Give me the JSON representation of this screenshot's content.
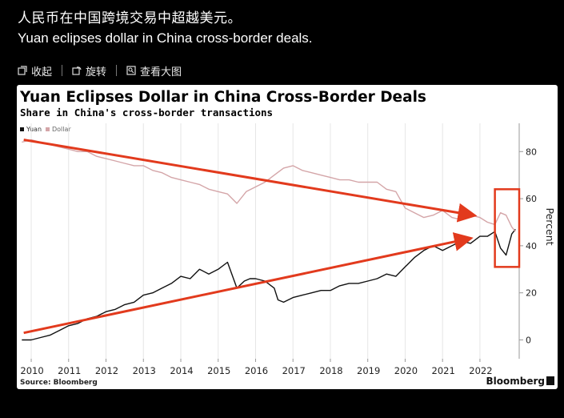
{
  "post": {
    "title_cn": "人民币在中国跨境交易中超越美元。",
    "title_en": "Yuan eclipses dollar in China cross-border deals."
  },
  "toolbar": {
    "items": [
      {
        "label": "收起",
        "icon": "collapse-icon"
      },
      {
        "label": "旋转",
        "icon": "rotate-icon"
      },
      {
        "label": "查看大图",
        "icon": "view-large-icon"
      }
    ]
  },
  "chart_data": {
    "type": "line",
    "title": "Yuan Eclipses Dollar in China Cross-Border Deals",
    "subtitle": "Share in China's cross-border transactions",
    "ylabel": "Percent",
    "source": "Source: Bloomberg",
    "brand": "Bloomberg",
    "ylim": [
      -8,
      92
    ],
    "yticks": [
      0,
      20,
      40,
      60,
      80
    ],
    "x_ticks": [
      "2010",
      "2011",
      "2012",
      "2013",
      "2014",
      "2015",
      "2016",
      "2017",
      "2018",
      "2019",
      "2020",
      "2021",
      "2022"
    ],
    "xlim": [
      2009.7,
      2023.05
    ],
    "legend_position": "top-left",
    "grid": true,
    "colors": {
      "yuan": "#111111",
      "dollar": "#d4a5a8",
      "arrow": "#e23a1d",
      "box": "#e23a1d"
    },
    "series": [
      {
        "name": "Yuan",
        "x": [
          2009.75,
          2010.0,
          2010.25,
          2010.5,
          2010.75,
          2011.0,
          2011.25,
          2011.5,
          2011.75,
          2012.0,
          2012.25,
          2012.5,
          2012.75,
          2013.0,
          2013.25,
          2013.5,
          2013.75,
          2014.0,
          2014.25,
          2014.5,
          2014.75,
          2015.0,
          2015.25,
          2015.5,
          2015.7,
          2015.85,
          2016.0,
          2016.25,
          2016.5,
          2016.6,
          2016.75,
          2017.0,
          2017.25,
          2017.5,
          2017.75,
          2018.0,
          2018.25,
          2018.5,
          2018.75,
          2019.0,
          2019.25,
          2019.5,
          2019.75,
          2020.0,
          2020.25,
          2020.5,
          2020.75,
          2021.0,
          2021.25,
          2021.5,
          2021.75,
          2022.0,
          2022.2,
          2022.4,
          2022.55,
          2022.7,
          2022.85,
          2022.95
        ],
        "values": [
          0,
          0,
          1,
          2,
          4,
          6,
          7,
          9,
          10,
          12,
          13,
          15,
          16,
          19,
          20,
          22,
          24,
          27,
          26,
          30,
          28,
          30,
          33,
          22,
          25,
          26,
          26,
          25,
          22,
          17,
          16,
          18,
          19,
          20,
          21,
          21,
          23,
          24,
          24,
          25,
          26,
          28,
          27,
          31,
          35,
          38,
          40,
          38,
          40,
          42,
          41,
          44,
          44,
          46,
          39,
          36,
          45,
          47
        ]
      },
      {
        "name": "Dollar",
        "x": [
          2009.75,
          2010.0,
          2010.25,
          2010.5,
          2010.75,
          2011.0,
          2011.25,
          2011.5,
          2011.75,
          2012.0,
          2012.25,
          2012.5,
          2012.75,
          2013.0,
          2013.25,
          2013.5,
          2013.75,
          2014.0,
          2014.25,
          2014.5,
          2014.75,
          2015.0,
          2015.25,
          2015.5,
          2015.75,
          2016.0,
          2016.25,
          2016.5,
          2016.75,
          2017.0,
          2017.25,
          2017.5,
          2017.75,
          2018.0,
          2018.25,
          2018.5,
          2018.75,
          2019.0,
          2019.25,
          2019.5,
          2019.75,
          2020.0,
          2020.25,
          2020.5,
          2020.75,
          2021.0,
          2021.25,
          2021.5,
          2021.75,
          2022.0,
          2022.2,
          2022.4,
          2022.55,
          2022.7,
          2022.85,
          2022.95
        ],
        "values": [
          84,
          85,
          84,
          83,
          82,
          81,
          80,
          80,
          78,
          77,
          76,
          75,
          74,
          74,
          72,
          71,
          69,
          68,
          67,
          66,
          64,
          63,
          62,
          58,
          63,
          65,
          67,
          70,
          73,
          74,
          72,
          71,
          70,
          69,
          68,
          68,
          67,
          67,
          67,
          64,
          63,
          56,
          54,
          52,
          53,
          55,
          52,
          51,
          53,
          52,
          50,
          49,
          54,
          53,
          48,
          46
        ]
      }
    ],
    "annotations": [
      {
        "type": "arrow",
        "from": [
          2009.8,
          85
        ],
        "to": [
          2021.8,
          53
        ]
      },
      {
        "type": "arrow",
        "from": [
          2009.8,
          3
        ],
        "to": [
          2021.7,
          43
        ]
      },
      {
        "type": "box",
        "x": [
          2022.4,
          2023.05
        ],
        "y": [
          31,
          64
        ]
      }
    ]
  }
}
